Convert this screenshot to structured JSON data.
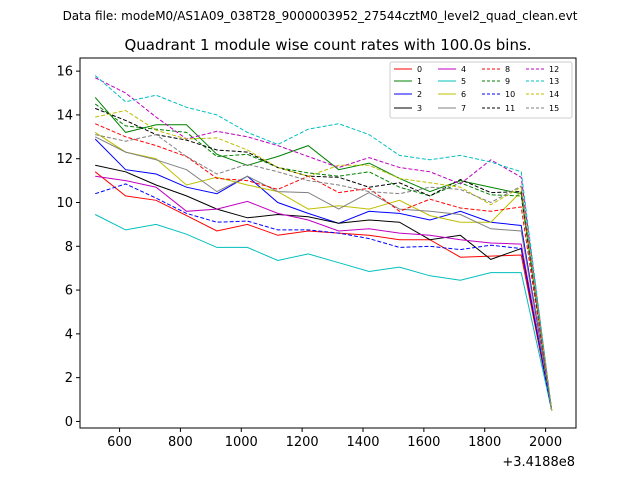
{
  "header": {
    "data_file": "Data file: modeM0/AS1A09_038T28_9000003952_27544cztM0_level2_quad_clean.evt"
  },
  "chart_data": {
    "type": "line",
    "title": "Quadrant 1 module wise count rates with 100.0s bins.",
    "xlabel": "",
    "ylabel": "",
    "x_offset_label": "+3.4188e8",
    "xlim": [
      470,
      2100
    ],
    "ylim": [
      -0.3,
      16.6
    ],
    "x_ticks": [
      600,
      800,
      1000,
      1200,
      1400,
      1600,
      1800,
      2000
    ],
    "x_tick_labels": [
      "600",
      "800",
      "1000",
      "1200",
      "1400",
      "1600",
      "1800",
      "2000"
    ],
    "y_ticks": [
      0,
      2,
      4,
      6,
      8,
      10,
      12,
      14,
      16
    ],
    "y_tick_labels": [
      "0",
      "2",
      "4",
      "6",
      "8",
      "10",
      "12",
      "14",
      "16"
    ],
    "x": [
      520,
      620,
      720,
      820,
      920,
      1020,
      1120,
      1220,
      1320,
      1420,
      1520,
      1620,
      1720,
      1820,
      1920,
      2020
    ],
    "legend_position": "top-right",
    "series": [
      {
        "name": "0",
        "color": "#ff0000",
        "dash": "solid",
        "values": [
          11.4,
          10.3,
          10.1,
          9.4,
          8.7,
          9.0,
          8.5,
          8.7,
          8.6,
          8.5,
          8.3,
          8.3,
          7.5,
          7.55,
          7.6,
          0.5
        ]
      },
      {
        "name": "1",
        "color": "#008000",
        "dash": "solid",
        "values": [
          14.8,
          13.2,
          13.55,
          13.55,
          12.2,
          11.7,
          12.1,
          12.6,
          11.5,
          11.8,
          11.1,
          10.5,
          11.0,
          10.7,
          10.4,
          0.5
        ]
      },
      {
        "name": "2",
        "color": "#0000ff",
        "dash": "solid",
        "values": [
          12.9,
          11.5,
          11.3,
          10.7,
          10.4,
          11.2,
          10.0,
          9.5,
          9.05,
          9.6,
          9.5,
          9.2,
          9.6,
          9.1,
          8.95,
          0.5
        ]
      },
      {
        "name": "3",
        "color": "#000000",
        "dash": "solid",
        "values": [
          11.7,
          11.4,
          10.8,
          10.3,
          9.7,
          9.3,
          9.45,
          9.35,
          9.05,
          9.2,
          9.1,
          8.3,
          8.5,
          7.4,
          7.9,
          0.5
        ]
      },
      {
        "name": "4",
        "color": "#c000c0",
        "dash": "solid",
        "values": [
          11.2,
          11.0,
          10.7,
          9.6,
          9.7,
          10.05,
          9.5,
          9.2,
          8.7,
          8.8,
          8.6,
          8.5,
          8.3,
          8.15,
          8.1,
          0.5
        ]
      },
      {
        "name": "5",
        "color": "#00bfbf",
        "dash": "solid",
        "values": [
          9.45,
          8.75,
          9.0,
          8.55,
          7.95,
          7.95,
          7.35,
          7.65,
          7.25,
          6.85,
          7.05,
          6.65,
          6.45,
          6.8,
          6.8,
          0.5
        ]
      },
      {
        "name": "6",
        "color": "#bfbf00",
        "dash": "solid",
        "values": [
          13.2,
          12.3,
          12.0,
          10.8,
          11.15,
          10.8,
          10.5,
          9.7,
          9.85,
          9.7,
          10.1,
          9.4,
          9.1,
          9.1,
          10.5,
          0.5
        ]
      },
      {
        "name": "7",
        "color": "#808080",
        "dash": "solid",
        "values": [
          13.0,
          12.3,
          11.95,
          11.5,
          10.5,
          11.2,
          10.5,
          10.45,
          9.7,
          10.45,
          9.7,
          9.6,
          9.45,
          8.8,
          8.7,
          0.5
        ]
      },
      {
        "name": "8",
        "color": "#ff0000",
        "dash": "dashed",
        "values": [
          13.6,
          13.0,
          12.6,
          12.1,
          11.1,
          11.0,
          10.6,
          11.2,
          10.45,
          10.65,
          9.6,
          10.15,
          9.75,
          9.6,
          9.8,
          0.5
        ]
      },
      {
        "name": "9",
        "color": "#008000",
        "dash": "dashed",
        "values": [
          14.5,
          13.5,
          13.35,
          13.2,
          12.1,
          12.2,
          11.6,
          11.35,
          11.2,
          11.4,
          10.7,
          10.3,
          10.9,
          10.35,
          10.3,
          0.5
        ]
      },
      {
        "name": "10",
        "color": "#0000ff",
        "dash": "dashed",
        "values": [
          10.4,
          10.85,
          10.2,
          9.5,
          9.1,
          9.15,
          8.75,
          8.75,
          8.6,
          8.35,
          7.95,
          8.0,
          7.85,
          8.05,
          7.9,
          0.5
        ]
      },
      {
        "name": "11",
        "color": "#000000",
        "dash": "dashed",
        "values": [
          14.3,
          13.75,
          13.1,
          12.85,
          12.4,
          12.3,
          11.6,
          11.2,
          11.15,
          10.7,
          10.9,
          10.3,
          11.05,
          10.45,
          10.5,
          0.5
        ]
      },
      {
        "name": "12",
        "color": "#c000c0",
        "dash": "dashed",
        "values": [
          15.7,
          15.0,
          13.9,
          12.9,
          13.25,
          13.0,
          12.6,
          12.1,
          11.6,
          12.05,
          11.6,
          11.4,
          10.85,
          11.95,
          11.15,
          0.5
        ]
      },
      {
        "name": "13",
        "color": "#00bfbf",
        "dash": "dashed",
        "values": [
          15.8,
          14.6,
          14.9,
          14.35,
          14.0,
          13.2,
          12.65,
          13.35,
          13.6,
          13.1,
          12.15,
          11.95,
          12.15,
          11.85,
          11.4,
          0.5
        ]
      },
      {
        "name": "14",
        "color": "#bfbf00",
        "dash": "dashed",
        "values": [
          13.9,
          14.2,
          13.3,
          12.9,
          12.95,
          12.4,
          11.6,
          11.2,
          11.7,
          11.7,
          11.1,
          10.9,
          10.7,
          9.9,
          10.7,
          0.5
        ]
      },
      {
        "name": "15",
        "color": "#808080",
        "dash": "dashed",
        "values": [
          13.1,
          12.8,
          13.1,
          12.1,
          11.3,
          11.75,
          11.4,
          11.0,
          10.8,
          10.5,
          10.4,
          10.7,
          10.6,
          10.0,
          10.75,
          0.5
        ]
      }
    ]
  }
}
